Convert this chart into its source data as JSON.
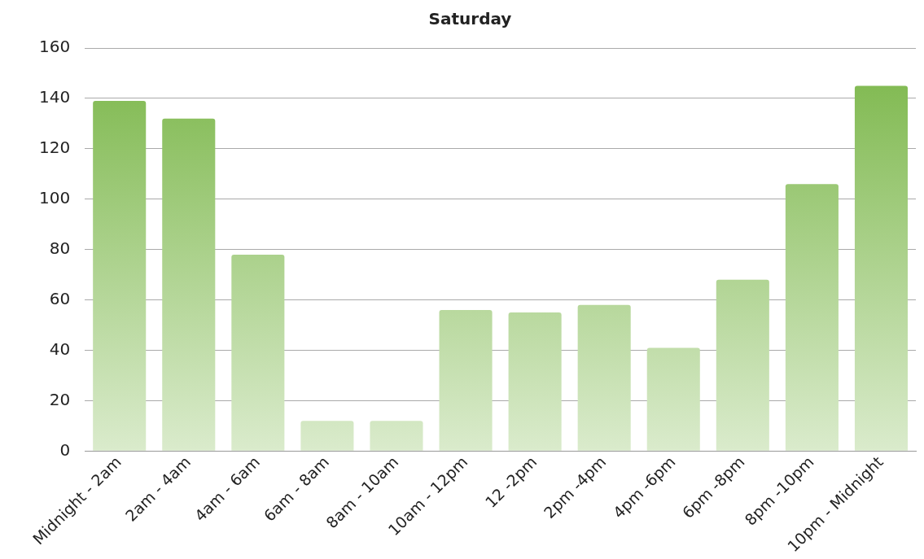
{
  "chart_data": {
    "type": "bar",
    "title": "Saturday",
    "categories": [
      "Midnight - 2am",
      "2am - 4am",
      "4am - 6am",
      "6am - 8am",
      "8am - 10am",
      "10am - 12pm",
      "12 -2pm",
      "2pm -4pm",
      "4pm -6pm",
      "6pm -8pm",
      "8pm -10pm",
      "10pm - Midnight"
    ],
    "values": [
      139,
      132,
      78,
      12,
      12,
      56,
      55,
      58,
      41,
      68,
      106,
      145
    ],
    "color": "#7ab648",
    "ylim": [
      0,
      160
    ],
    "yticks": [
      0,
      20,
      40,
      60,
      80,
      100,
      120,
      140,
      160
    ],
    "grid": "y",
    "legend": false
  }
}
